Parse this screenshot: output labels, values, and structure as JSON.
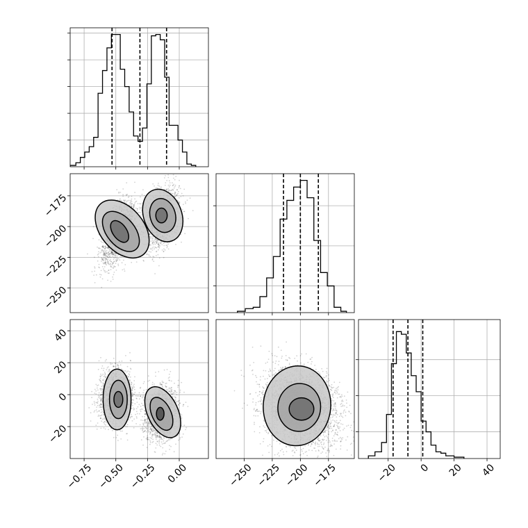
{
  "chart_data": {
    "type": "corner",
    "grid": true,
    "variables": 3,
    "panels": [
      {
        "kind": "histogram",
        "row": 0,
        "col": 0,
        "xlim": [
          -0.86,
          0.23
        ],
        "ylim": [
          0,
          1.04
        ],
        "bins": [
          {
            "x0": -0.86,
            "x1": -0.815,
            "v": 0.01
          },
          {
            "x0": -0.815,
            "x1": -0.78,
            "v": 0.03
          },
          {
            "x0": -0.78,
            "x1": -0.745,
            "v": 0.07
          },
          {
            "x0": -0.745,
            "x1": -0.71,
            "v": 0.11
          },
          {
            "x0": -0.71,
            "x1": -0.675,
            "v": 0.15
          },
          {
            "x0": -0.675,
            "x1": -0.64,
            "v": 0.22
          },
          {
            "x0": -0.64,
            "x1": -0.605,
            "v": 0.55
          },
          {
            "x0": -0.605,
            "x1": -0.57,
            "v": 0.72
          },
          {
            "x0": -0.57,
            "x1": -0.535,
            "v": 0.89
          },
          {
            "x0": -0.535,
            "x1": -0.5,
            "v": 0.99
          },
          {
            "x0": -0.5,
            "x1": -0.465,
            "v": 0.99
          },
          {
            "x0": -0.465,
            "x1": -0.43,
            "v": 0.73
          },
          {
            "x0": -0.43,
            "x1": -0.395,
            "v": 0.6
          },
          {
            "x0": -0.395,
            "x1": -0.36,
            "v": 0.41
          },
          {
            "x0": -0.36,
            "x1": -0.325,
            "v": 0.23
          },
          {
            "x0": -0.325,
            "x1": -0.29,
            "v": 0.19
          },
          {
            "x0": -0.29,
            "x1": -0.255,
            "v": 0.29
          },
          {
            "x0": -0.255,
            "x1": -0.22,
            "v": 0.62
          },
          {
            "x0": -0.22,
            "x1": -0.185,
            "v": 0.98
          },
          {
            "x0": -0.185,
            "x1": -0.15,
            "v": 0.99
          },
          {
            "x0": -0.15,
            "x1": -0.115,
            "v": 0.95
          },
          {
            "x0": -0.115,
            "x1": -0.08,
            "v": 0.67
          },
          {
            "x0": -0.08,
            "x1": -0.045,
            "v": 0.31
          },
          {
            "x0": -0.045,
            "x1": -0.01,
            "v": 0.31
          },
          {
            "x0": -0.01,
            "x1": 0.025,
            "v": 0.2
          },
          {
            "x0": 0.025,
            "x1": 0.06,
            "v": 0.11
          },
          {
            "x0": 0.06,
            "x1": 0.095,
            "v": 0.02
          },
          {
            "x0": 0.095,
            "x1": 0.13,
            "v": 0.01
          }
        ],
        "quantiles": [
          -0.53,
          -0.31,
          -0.1
        ],
        "yticks": [
          0.2,
          0.4,
          0.6,
          0.8,
          1.0
        ],
        "xticks": [
          -0.75,
          -0.5,
          -0.25,
          0.0
        ]
      },
      {
        "kind": "histogram",
        "row": 1,
        "col": 1,
        "xlim": [
          -275,
          -152
        ],
        "ylim": [
          0,
          1.04
        ],
        "bins": [
          {
            "x0": -256,
            "x1": -249,
            "v": 0.01
          },
          {
            "x0": -249,
            "x1": -242,
            "v": 0.03
          },
          {
            "x0": -242,
            "x1": -236,
            "v": 0.04
          },
          {
            "x0": -236,
            "x1": -230,
            "v": 0.12
          },
          {
            "x0": -230,
            "x1": -224,
            "v": 0.26
          },
          {
            "x0": -224,
            "x1": -218,
            "v": 0.42
          },
          {
            "x0": -218,
            "x1": -212,
            "v": 0.7
          },
          {
            "x0": -212,
            "x1": -206,
            "v": 0.84
          },
          {
            "x0": -206,
            "x1": -200,
            "v": 0.94
          },
          {
            "x0": -200,
            "x1": -194,
            "v": 0.99
          },
          {
            "x0": -194,
            "x1": -188,
            "v": 0.86
          },
          {
            "x0": -188,
            "x1": -182,
            "v": 0.54
          },
          {
            "x0": -182,
            "x1": -176,
            "v": 0.3
          },
          {
            "x0": -176,
            "x1": -170,
            "v": 0.2
          },
          {
            "x0": -170,
            "x1": -164,
            "v": 0.04
          },
          {
            "x0": -164,
            "x1": -159,
            "v": 0.01
          }
        ],
        "quantiles": [
          -215,
          -200,
          -184
        ],
        "yticks": [
          0.2,
          0.5,
          0.8
        ],
        "xticks": [
          -250,
          -225,
          -200,
          -175
        ]
      },
      {
        "kind": "histogram",
        "row": 2,
        "col": 2,
        "xlim": [
          -38,
          48
        ],
        "ylim": [
          0,
          1.04
        ],
        "bins": [
          {
            "x0": -32,
            "x1": -28,
            "v": 0.02
          },
          {
            "x0": -28,
            "x1": -24,
            "v": 0.05
          },
          {
            "x0": -24,
            "x1": -21,
            "v": 0.12
          },
          {
            "x0": -21,
            "x1": -18,
            "v": 0.33
          },
          {
            "x0": -18,
            "x1": -15,
            "v": 0.71
          },
          {
            "x0": -15,
            "x1": -12,
            "v": 0.95
          },
          {
            "x0": -12,
            "x1": -9,
            "v": 0.93
          },
          {
            "x0": -9,
            "x1": -6,
            "v": 0.79
          },
          {
            "x0": -6,
            "x1": -3,
            "v": 0.62
          },
          {
            "x0": -3,
            "x1": 0,
            "v": 0.5
          },
          {
            "x0": 0,
            "x1": 3,
            "v": 0.28
          },
          {
            "x0": 3,
            "x1": 6,
            "v": 0.2
          },
          {
            "x0": 6,
            "x1": 9,
            "v": 0.1
          },
          {
            "x0": 9,
            "x1": 12,
            "v": 0.05
          },
          {
            "x0": 12,
            "x1": 15,
            "v": 0.04
          },
          {
            "x0": 15,
            "x1": 20,
            "v": 0.02
          },
          {
            "x0": 20,
            "x1": 26,
            "v": 0.01
          }
        ],
        "quantiles": [
          -17,
          -8,
          1
        ],
        "yticks": [
          0.2,
          0.47,
          0.74
        ],
        "xticks": [
          -20,
          0,
          20,
          40
        ]
      },
      {
        "kind": "density2d",
        "row": 1,
        "col": 0,
        "xlim": [
          -0.86,
          0.23
        ],
        "ylim": [
          -270,
          -157
        ],
        "yticks": [
          -175,
          -200,
          -225,
          -250
        ],
        "clusters": [
          {
            "cx": -0.48,
            "cy": -205,
            "sx": 0.07,
            "sy": 13,
            "rho": 0.55,
            "n": 1700
          },
          {
            "cx": -0.14,
            "cy": -193,
            "sx": 0.07,
            "sy": 12,
            "rho": 0.3,
            "n": 1500
          }
        ],
        "levels": [
          {
            "cx": -0.45,
            "cy": -202,
            "rx": 0.17,
            "ry": 27,
            "rot": -40,
            "fill": "#c8c8c8"
          },
          {
            "cx": -0.46,
            "cy": -204,
            "rx": 0.11,
            "ry": 19,
            "rot": -40,
            "fill": "#a3a3a3"
          },
          {
            "cx": -0.47,
            "cy": -204,
            "rx": 0.055,
            "ry": 10,
            "rot": -35,
            "fill": "#6d6d6d"
          },
          {
            "cx": -0.13,
            "cy": -191,
            "rx": 0.15,
            "ry": 22,
            "rot": -20,
            "fill": "#c8c8c8"
          },
          {
            "cx": -0.13,
            "cy": -191,
            "rx": 0.1,
            "ry": 14,
            "rot": -15,
            "fill": "#a3a3a3"
          },
          {
            "cx": -0.14,
            "cy": -191,
            "rx": 0.045,
            "ry": 6,
            "rot": 0,
            "fill": "#6d6d6d"
          }
        ]
      },
      {
        "kind": "density2d",
        "row": 2,
        "col": 0,
        "xlim": [
          -0.86,
          0.23
        ],
        "ylim": [
          -40,
          47
        ],
        "yticks": [
          40,
          20,
          0,
          -20
        ],
        "xticks": [
          -0.75,
          -0.5,
          -0.25,
          0.0
        ],
        "clusters": [
          {
            "cx": -0.5,
            "cy": -2,
            "sx": 0.07,
            "sy": 9,
            "rho": 0.05,
            "n": 1500
          },
          {
            "cx": -0.14,
            "cy": -12,
            "sx": 0.07,
            "sy": 9,
            "rho": 0.05,
            "n": 1500
          }
        ],
        "levels": [
          {
            "cx": -0.49,
            "cy": -3,
            "rx": 0.11,
            "ry": 19,
            "rot": 0,
            "fill": "#c8c8c8"
          },
          {
            "cx": -0.48,
            "cy": -3,
            "rx": 0.07,
            "ry": 12,
            "rot": 0,
            "fill": "#a3a3a3"
          },
          {
            "cx": -0.48,
            "cy": -3,
            "rx": 0.035,
            "ry": 5,
            "rot": 0,
            "fill": "#6d6d6d"
          },
          {
            "cx": -0.13,
            "cy": -11,
            "rx": 0.12,
            "ry": 17,
            "rot": -25,
            "fill": "#c8c8c8"
          },
          {
            "cx": -0.14,
            "cy": -12,
            "rx": 0.075,
            "ry": 11,
            "rot": -25,
            "fill": "#a3a3a3"
          },
          {
            "cx": -0.15,
            "cy": -12,
            "rx": 0.03,
            "ry": 4,
            "rot": 0,
            "fill": "#4a4a4a"
          }
        ]
      },
      {
        "kind": "density2d",
        "row": 2,
        "col": 1,
        "xlim": [
          -275,
          -152
        ],
        "ylim": [
          -40,
          47
        ],
        "xticks": [
          -250,
          -225,
          -200,
          -175
        ],
        "clusters": [
          {
            "cx": -200,
            "cy": -8,
            "sx": 17,
            "sy": 12,
            "rho": -0.2,
            "n": 3000
          }
        ],
        "levels": [
          {
            "cx": -203,
            "cy": -7,
            "rx": 30,
            "ry": 25,
            "rot": 5,
            "fill": "#c8c8c8"
          },
          {
            "cx": -201,
            "cy": -8,
            "rx": 19,
            "ry": 15,
            "rot": 5,
            "fill": "#a3a3a3"
          },
          {
            "cx": -199,
            "cy": -9,
            "rx": 11,
            "ry": 7,
            "rot": 0,
            "fill": "#6d6d6d"
          }
        ]
      }
    ]
  }
}
